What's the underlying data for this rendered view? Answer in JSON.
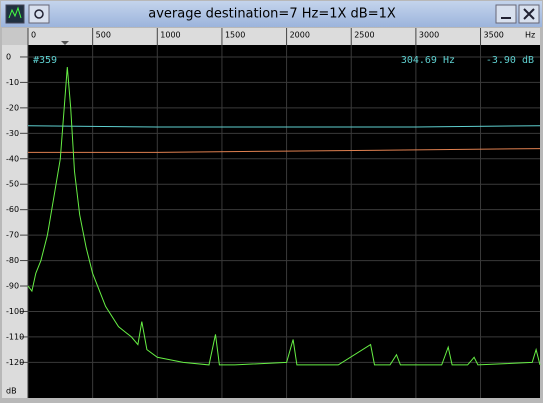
{
  "window": {
    "title": "average   destination=7 Hz=1X dB=1X"
  },
  "chart_data": {
    "type": "line",
    "xlabel": "Hz",
    "ylabel": "dB",
    "annotations": [
      "#359",
      "304.69 Hz",
      "-3.90 dB"
    ],
    "xlim": [
      0,
      3960
    ],
    "ylim": [
      -134,
      4.7
    ],
    "xticks": [
      0,
      500,
      1000,
      1500,
      2000,
      2500,
      3000,
      3500
    ],
    "yticks": [
      0,
      -10,
      -20,
      -30,
      -40,
      -50,
      -60,
      -70,
      -80,
      -90,
      -100,
      -110,
      -120
    ],
    "grid": true,
    "series": [
      {
        "color": "#5fd0d0",
        "x": [
          0,
          1000,
          2000,
          3000,
          3960
        ],
        "values": [
          -27,
          -27.5,
          -27.5,
          -27.5,
          -27
        ]
      },
      {
        "color": "#e08050",
        "x": [
          0,
          1000,
          2000,
          3000,
          3960
        ],
        "values": [
          -37.5,
          -37.5,
          -37,
          -36.5,
          -36
        ]
      },
      {
        "color": "#66ee44",
        "x": [
          0,
          30,
          60,
          100,
          150,
          200,
          250,
          280,
          304,
          330,
          360,
          400,
          450,
          500,
          600,
          700,
          800,
          850,
          880,
          920,
          1000,
          1200,
          1400,
          1450,
          1480,
          1600,
          2000,
          2050,
          2080,
          2400,
          2650,
          2680,
          2800,
          2850,
          2880,
          3200,
          3250,
          3280,
          3400,
          3450,
          3480,
          3900,
          3930,
          3960
        ],
        "values": [
          -90,
          -92,
          -85,
          -80,
          -70,
          -55,
          -40,
          -20,
          -4,
          -20,
          -45,
          -62,
          -75,
          -85,
          -98,
          -106,
          -110,
          -113,
          -104,
          -115,
          -118,
          -120,
          -121,
          -109,
          -121,
          -121,
          -120,
          -111,
          -121,
          -121,
          -113,
          -121,
          -121,
          -117,
          -121,
          -121,
          -114,
          -121,
          -121,
          -118,
          -121,
          -120,
          -115,
          -121
        ]
      }
    ]
  }
}
